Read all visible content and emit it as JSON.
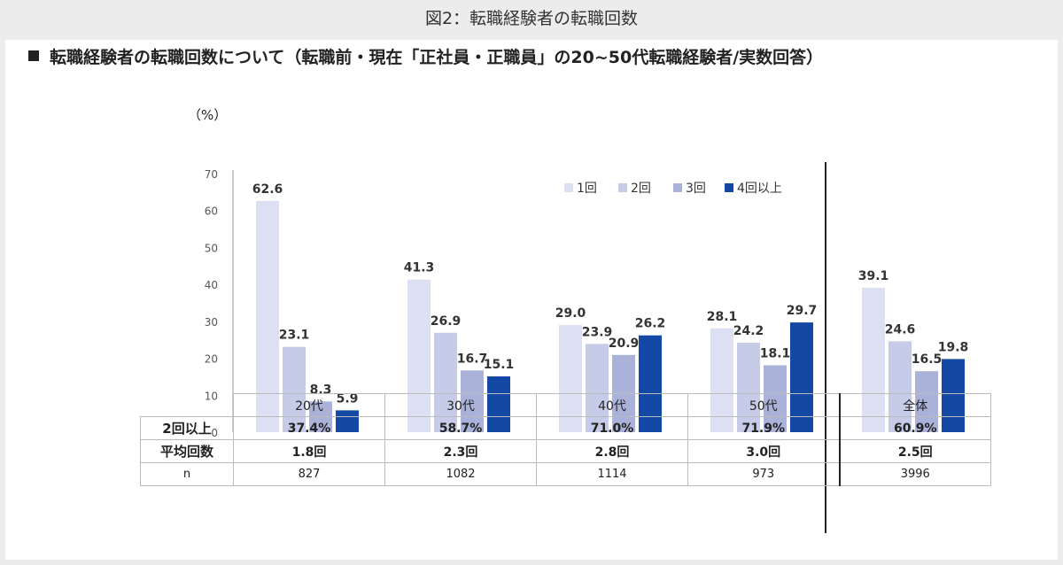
{
  "figure_title": "図2：転職経験者の転職回数",
  "heading": "転職経験者の転職回数について（転職前・現在「正社員・正職員」の20~50代転職経験者/実数回答）",
  "unit": "（%）",
  "chart_data": {
    "type": "bar",
    "categories": [
      "20代",
      "30代",
      "40代",
      "50代",
      "全体"
    ],
    "series": [
      {
        "name": "1回",
        "color": "#dde0f2",
        "values": [
          62.6,
          41.3,
          29.0,
          28.1,
          39.1
        ]
      },
      {
        "name": "2回",
        "color": "#c6cce8",
        "values": [
          23.1,
          26.9,
          23.9,
          24.2,
          24.6
        ]
      },
      {
        "name": "3回",
        "color": "#aab2da",
        "values": [
          8.3,
          16.7,
          20.9,
          18.1,
          16.5
        ]
      },
      {
        "name": "4回以上",
        "color": "#1448a5",
        "values": [
          5.9,
          15.1,
          26.2,
          29.7,
          19.8
        ]
      }
    ],
    "value_labels": [
      [
        "62.6",
        "41.3",
        "29.0",
        "28.1",
        "39.1"
      ],
      [
        "23.1",
        "26.9",
        "23.9",
        "24.2",
        "24.6"
      ],
      [
        "8.3",
        "16.7",
        "20.9",
        "18.1",
        "16.5"
      ],
      [
        "5.9",
        "15.1",
        "26.2",
        "29.7",
        "19.8"
      ]
    ],
    "ylim": [
      0,
      70
    ],
    "yticks": [
      "0",
      "10",
      "20",
      "30",
      "40",
      "50",
      "60",
      "70"
    ],
    "legend_position": "top-right",
    "separator_before": "全体"
  },
  "table": {
    "columns": [
      "20代",
      "30代",
      "40代",
      "50代",
      "全体"
    ],
    "rows": [
      {
        "label": "2回以上",
        "values": [
          "37.4%",
          "58.7%",
          "71.0%",
          "71.9%",
          "60.9%"
        ]
      },
      {
        "label": "平均回数",
        "values": [
          "1.8回",
          "2.3回",
          "2.8回",
          "3.0回",
          "2.5回"
        ]
      },
      {
        "label": "n",
        "values": [
          "827",
          "1082",
          "1114",
          "973",
          "3996"
        ]
      }
    ]
  }
}
